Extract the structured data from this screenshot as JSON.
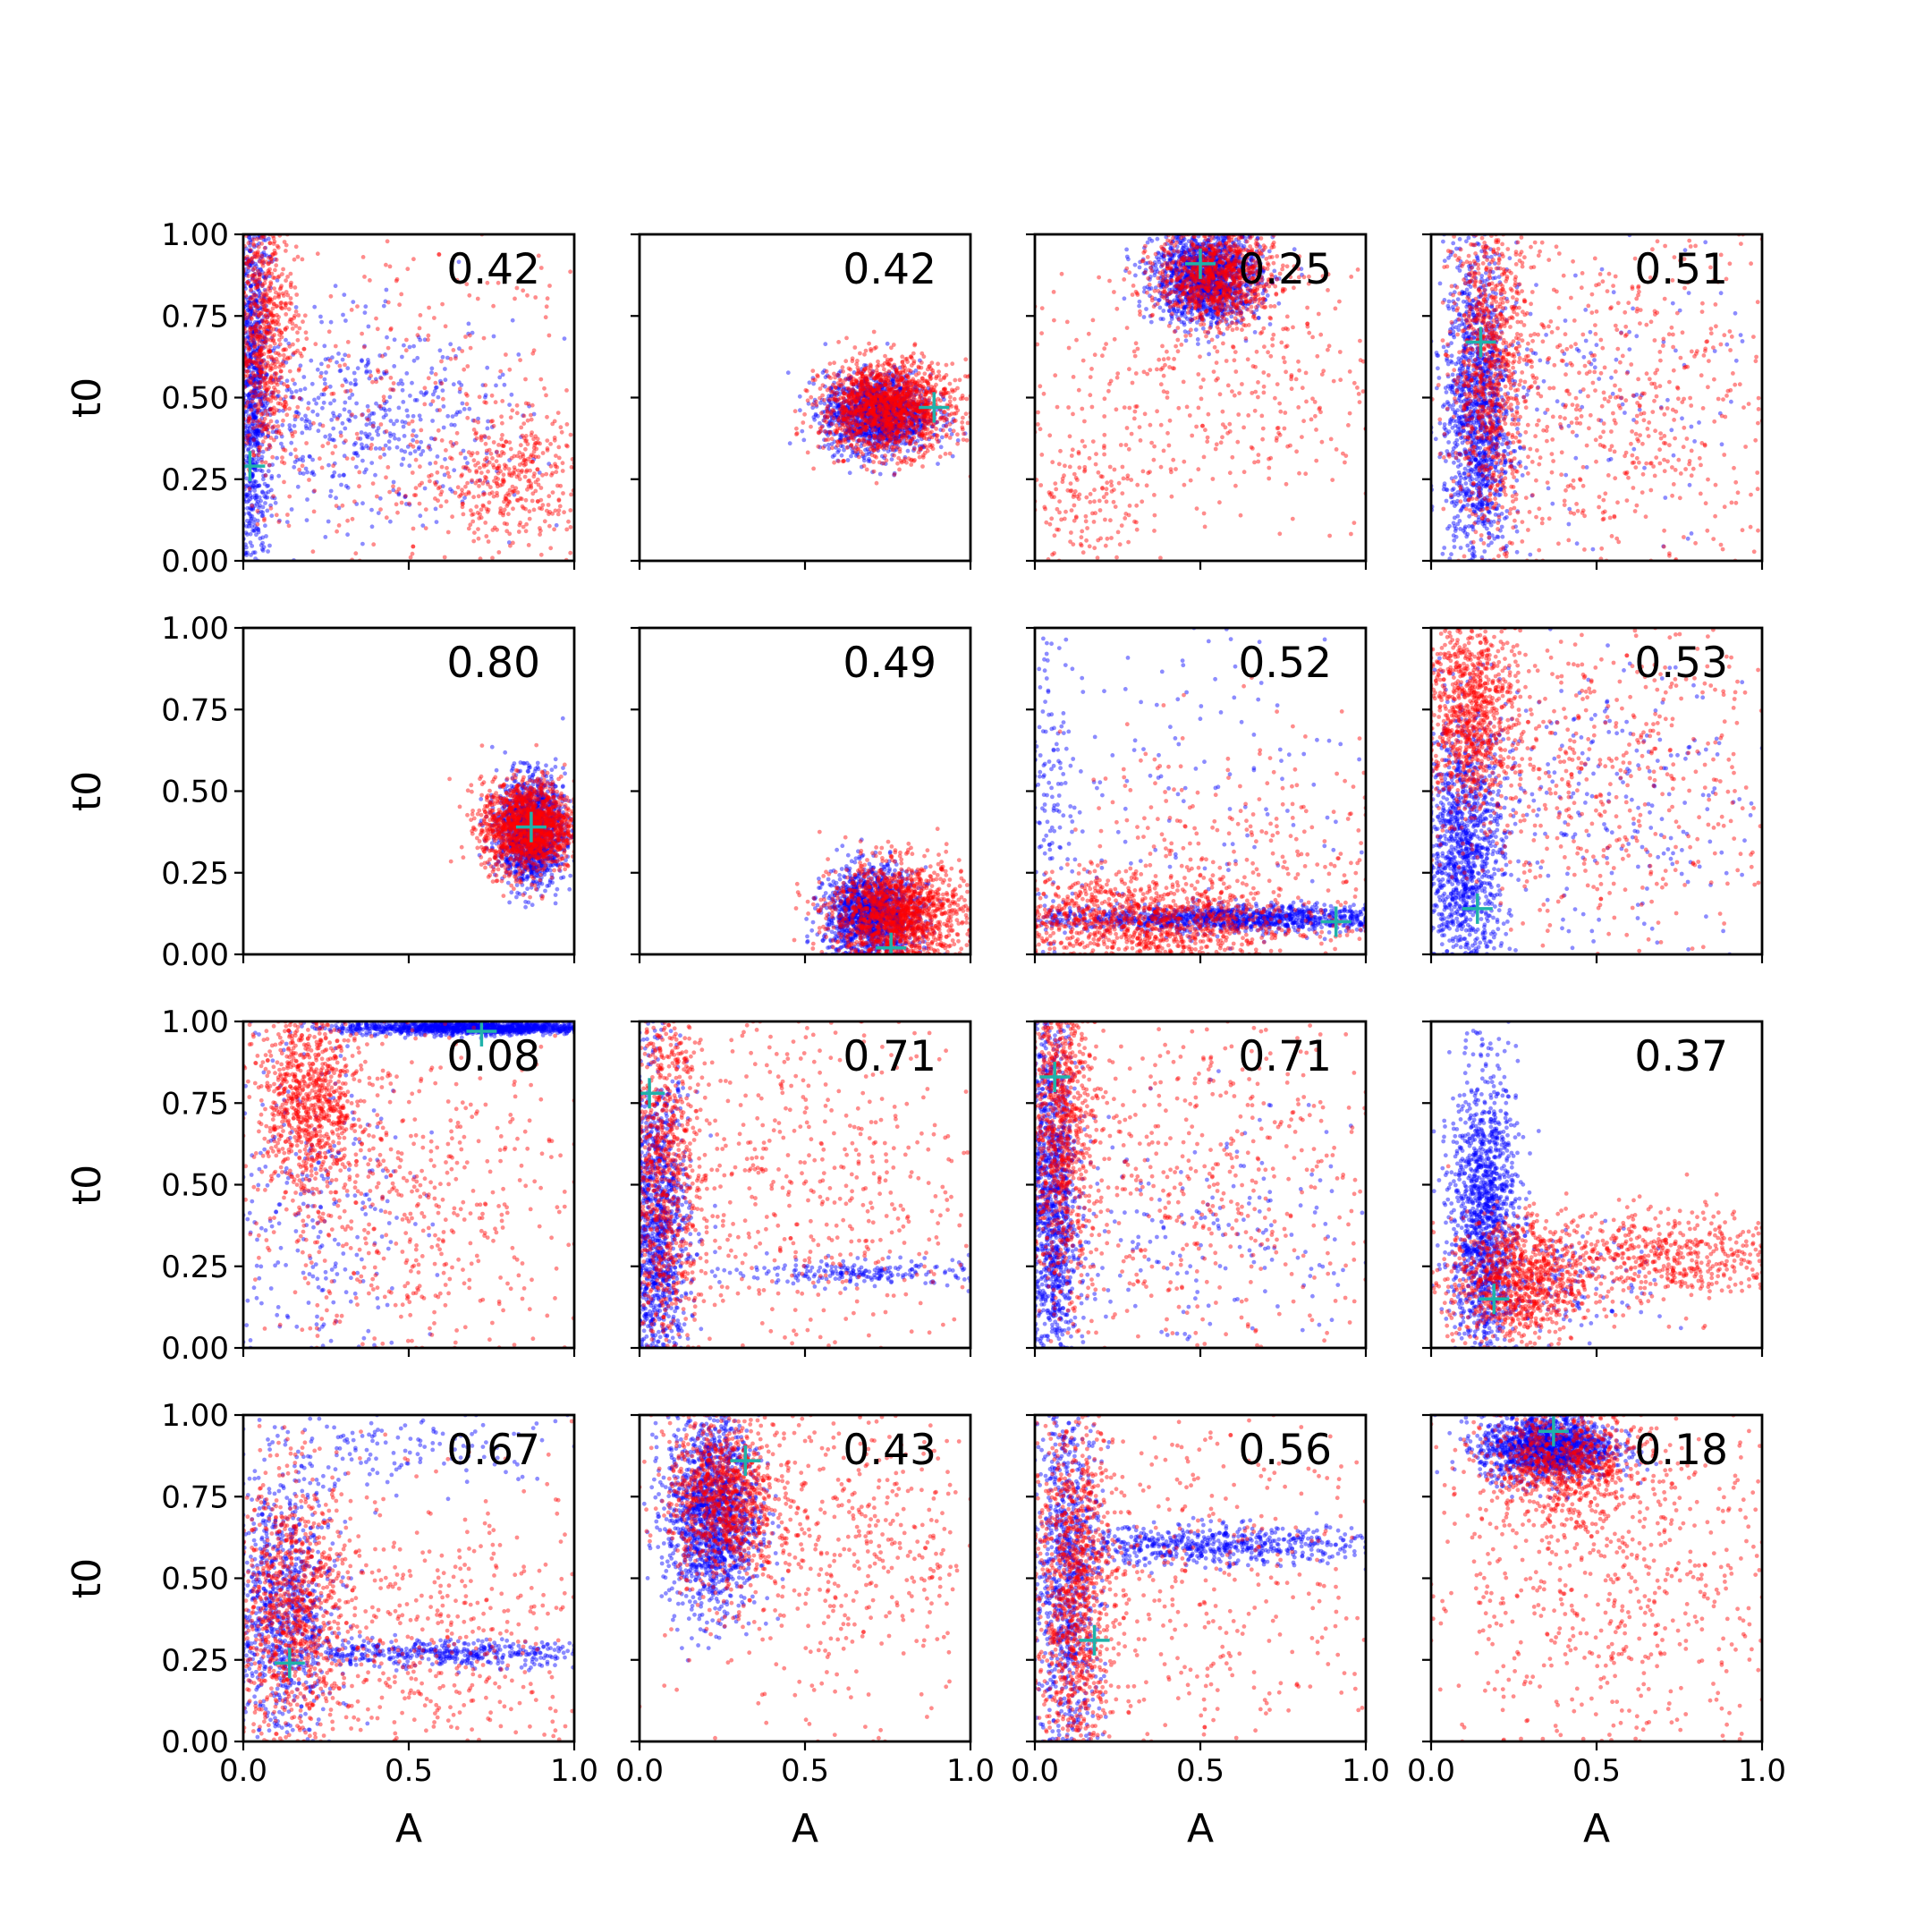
{
  "figure": {
    "layout": "4x4 grid of scatter panels, shared axes",
    "colors": {
      "series_a": "#0000ff",
      "series_b": "#ff0000",
      "marker": "#20b2aa"
    }
  },
  "chart_data": {
    "type": "scatter",
    "xlabel": "A",
    "ylabel": "t0",
    "xlim": [
      0,
      1
    ],
    "ylim": [
      0,
      1
    ],
    "xticks": [
      "0.0",
      "0.5",
      "1.0"
    ],
    "yticks": [
      "0.00",
      "0.25",
      "0.50",
      "0.75",
      "1.00"
    ],
    "grid": false,
    "point_counts_per_panel": {
      "blue": 1500,
      "red": 1500
    },
    "panels": [
      {
        "row": 0,
        "col": 0,
        "score": "0.42",
        "truth": [
          0.02,
          0.29
        ],
        "blue_clusters": [
          [
            0.03,
            0.55,
            0.025,
            0.32,
            0.65
          ],
          [
            0.35,
            0.42,
            0.25,
            0.15,
            0.35
          ]
        ],
        "red_clusters": [
          [
            0.06,
            0.7,
            0.05,
            0.2,
            0.5
          ],
          [
            0.8,
            0.25,
            0.12,
            0.1,
            0.25
          ],
          [
            0.5,
            0.5,
            0.3,
            0.3,
            0.25
          ]
        ]
      },
      {
        "row": 0,
        "col": 1,
        "score": "0.42",
        "truth": [
          0.89,
          0.47
        ],
        "blue_clusters": [
          [
            0.72,
            0.45,
            0.08,
            0.06,
            1
          ]
        ],
        "red_clusters": [
          [
            0.75,
            0.47,
            0.1,
            0.07,
            1
          ]
        ]
      },
      {
        "row": 0,
        "col": 2,
        "score": "0.25",
        "truth": [
          0.5,
          0.91
        ],
        "blue_clusters": [
          [
            0.52,
            0.87,
            0.08,
            0.07,
            1
          ]
        ],
        "red_clusters": [
          [
            0.55,
            0.87,
            0.09,
            0.07,
            0.6
          ],
          [
            0.55,
            0.55,
            0.3,
            0.25,
            0.3
          ],
          [
            0.15,
            0.2,
            0.1,
            0.1,
            0.1
          ]
        ]
      },
      {
        "row": 0,
        "col": 3,
        "score": "0.51",
        "truth": [
          0.15,
          0.67
        ],
        "blue_clusters": [
          [
            0.14,
            0.45,
            0.05,
            0.25,
            0.9
          ],
          [
            0.45,
            0.5,
            0.25,
            0.25,
            0.1
          ]
        ],
        "red_clusters": [
          [
            0.18,
            0.6,
            0.06,
            0.25,
            0.6
          ],
          [
            0.6,
            0.45,
            0.25,
            0.3,
            0.4
          ]
        ]
      },
      {
        "row": 1,
        "col": 0,
        "score": "0.80",
        "truth": [
          0.87,
          0.39
        ],
        "blue_clusters": [
          [
            0.87,
            0.38,
            0.05,
            0.08,
            1
          ]
        ],
        "red_clusters": [
          [
            0.86,
            0.39,
            0.07,
            0.07,
            1
          ]
        ]
      },
      {
        "row": 1,
        "col": 1,
        "score": "0.49",
        "truth": [
          0.76,
          0.02
        ],
        "blue_clusters": [
          [
            0.7,
            0.12,
            0.07,
            0.07,
            1
          ]
        ],
        "red_clusters": [
          [
            0.78,
            0.12,
            0.1,
            0.08,
            1
          ]
        ]
      },
      {
        "row": 1,
        "col": 2,
        "score": "0.52",
        "truth": [
          0.91,
          0.1
        ],
        "blue_clusters": [
          [
            0.6,
            0.11,
            0.3,
            0.02,
            0.8
          ],
          [
            0.05,
            0.5,
            0.04,
            0.3,
            0.1
          ],
          [
            0.5,
            0.5,
            0.3,
            0.3,
            0.1
          ]
        ],
        "red_clusters": [
          [
            0.3,
            0.1,
            0.25,
            0.07,
            0.8
          ],
          [
            0.6,
            0.3,
            0.3,
            0.2,
            0.2
          ]
        ]
      },
      {
        "row": 1,
        "col": 3,
        "score": "0.53",
        "truth": [
          0.14,
          0.14
        ],
        "blue_clusters": [
          [
            0.1,
            0.3,
            0.06,
            0.2,
            0.8
          ],
          [
            0.5,
            0.45,
            0.3,
            0.25,
            0.2
          ]
        ],
        "red_clusters": [
          [
            0.12,
            0.75,
            0.07,
            0.15,
            0.6
          ],
          [
            0.5,
            0.55,
            0.3,
            0.25,
            0.4
          ]
        ]
      },
      {
        "row": 2,
        "col": 0,
        "score": "0.08",
        "truth": [
          0.72,
          0.97
        ],
        "blue_clusters": [
          [
            0.7,
            0.98,
            0.2,
            0.01,
            0.8
          ],
          [
            0.2,
            0.4,
            0.15,
            0.3,
            0.2
          ]
        ],
        "red_clusters": [
          [
            0.2,
            0.75,
            0.08,
            0.15,
            0.6
          ],
          [
            0.5,
            0.4,
            0.25,
            0.3,
            0.4
          ]
        ]
      },
      {
        "row": 2,
        "col": 1,
        "score": "0.71",
        "truth": [
          0.03,
          0.78
        ],
        "blue_clusters": [
          [
            0.05,
            0.35,
            0.05,
            0.25,
            0.85
          ],
          [
            0.7,
            0.23,
            0.2,
            0.02,
            0.15
          ]
        ],
        "red_clusters": [
          [
            0.07,
            0.55,
            0.06,
            0.3,
            0.6
          ],
          [
            0.5,
            0.5,
            0.3,
            0.3,
            0.4
          ]
        ]
      },
      {
        "row": 2,
        "col": 2,
        "score": "0.71",
        "truth": [
          0.06,
          0.83
        ],
        "blue_clusters": [
          [
            0.05,
            0.45,
            0.04,
            0.3,
            0.85
          ],
          [
            0.5,
            0.3,
            0.3,
            0.2,
            0.15
          ]
        ],
        "red_clusters": [
          [
            0.08,
            0.7,
            0.05,
            0.25,
            0.6
          ],
          [
            0.5,
            0.5,
            0.3,
            0.3,
            0.4
          ]
        ]
      },
      {
        "row": 2,
        "col": 3,
        "score": "0.37",
        "truth": [
          0.19,
          0.15
        ],
        "blue_clusters": [
          [
            0.16,
            0.4,
            0.05,
            0.22,
            0.9
          ],
          [
            0.4,
            0.2,
            0.15,
            0.08,
            0.1
          ]
        ],
        "red_clusters": [
          [
            0.25,
            0.2,
            0.1,
            0.1,
            0.6
          ],
          [
            0.7,
            0.28,
            0.2,
            0.07,
            0.4
          ]
        ]
      },
      {
        "row": 3,
        "col": 0,
        "score": "0.67",
        "truth": [
          0.14,
          0.24
        ],
        "blue_clusters": [
          [
            0.12,
            0.4,
            0.08,
            0.2,
            0.6
          ],
          [
            0.6,
            0.27,
            0.25,
            0.02,
            0.3
          ],
          [
            0.5,
            0.9,
            0.3,
            0.06,
            0.1
          ]
        ],
        "red_clusters": [
          [
            0.15,
            0.4,
            0.09,
            0.2,
            0.6
          ],
          [
            0.55,
            0.3,
            0.3,
            0.25,
            0.4
          ]
        ]
      },
      {
        "row": 3,
        "col": 1,
        "score": "0.43",
        "truth": [
          0.32,
          0.86
        ],
        "blue_clusters": [
          [
            0.22,
            0.7,
            0.07,
            0.15,
            1
          ]
        ],
        "red_clusters": [
          [
            0.25,
            0.75,
            0.08,
            0.12,
            0.6
          ],
          [
            0.6,
            0.6,
            0.25,
            0.25,
            0.4
          ]
        ]
      },
      {
        "row": 3,
        "col": 2,
        "score": "0.56",
        "truth": [
          0.18,
          0.31
        ],
        "blue_clusters": [
          [
            0.1,
            0.5,
            0.05,
            0.3,
            0.6
          ],
          [
            0.55,
            0.6,
            0.25,
            0.03,
            0.4
          ]
        ],
        "red_clusters": [
          [
            0.12,
            0.45,
            0.06,
            0.28,
            0.7
          ],
          [
            0.5,
            0.5,
            0.3,
            0.3,
            0.3
          ]
        ]
      },
      {
        "row": 3,
        "col": 3,
        "score": "0.18",
        "truth": [
          0.37,
          0.95
        ],
        "blue_clusters": [
          [
            0.35,
            0.9,
            0.1,
            0.05,
            1
          ]
        ],
        "red_clusters": [
          [
            0.4,
            0.85,
            0.12,
            0.08,
            0.5
          ],
          [
            0.55,
            0.5,
            0.3,
            0.3,
            0.5
          ]
        ]
      }
    ]
  }
}
